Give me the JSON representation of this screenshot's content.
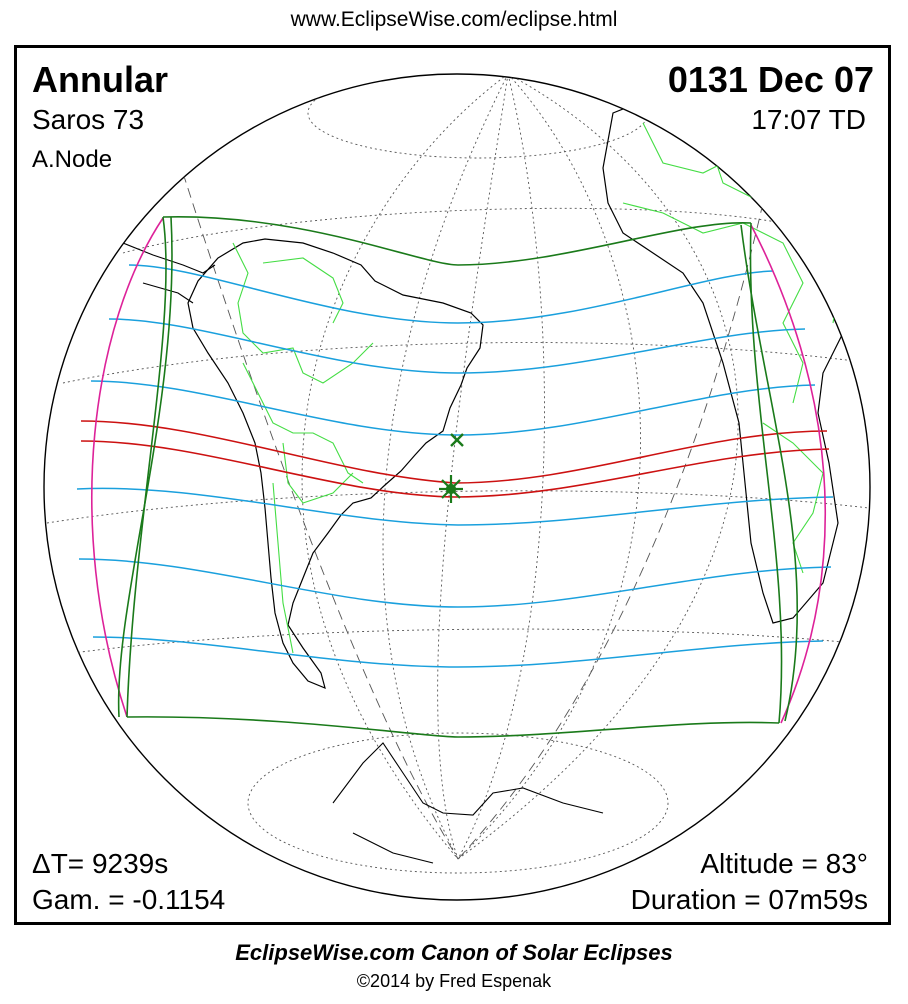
{
  "header": {
    "url": "www.EclipseWise.com/eclipse.html"
  },
  "eclipse": {
    "type": "Annular",
    "date": "0131 Dec 07",
    "saros": "Saros  73",
    "time": "17:07 TD",
    "node": "A.Node",
    "delta_t": "ΔT=   9239s",
    "gamma": "Gam. = -0.1154",
    "altitude": "Altitude = 83°",
    "duration": "Duration = 07m59s"
  },
  "footer": {
    "title": "EclipseWise.com Canon of Solar Eclipses",
    "copyright": "©2014 by Fred Espenak"
  },
  "colors": {
    "penumbra_limits": "#1a7a1a",
    "umbral_path": "#cc1111",
    "hourly_lines": "#1aa0dd",
    "rise_set": "#dd2299",
    "borders": "#33cc33",
    "coastlines": "#000000",
    "markers": "#1a7a1a"
  },
  "icons": {
    "greatest_eclipse": "asterisk-marker-icon",
    "subsolar_point": "x-marker-icon"
  }
}
